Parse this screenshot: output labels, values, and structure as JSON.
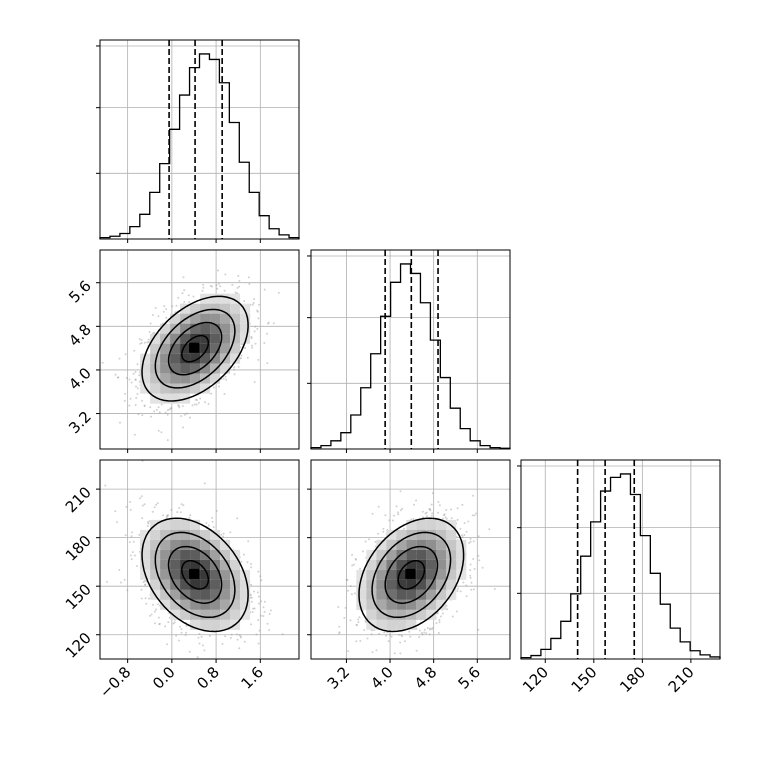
{
  "chart_data": {
    "type": "corner",
    "params": [
      {
        "range": [
          -1.3,
          2.3
        ],
        "ticks": [
          -0.8,
          0.0,
          0.8,
          1.6
        ],
        "tick_labels": [
          "−0.8",
          "0.0",
          "0.8",
          "1.6"
        ],
        "quantiles": [
          -0.05,
          0.42,
          0.91
        ]
      },
      {
        "range": [
          2.55,
          6.2
        ],
        "ticks": [
          3.2,
          4.0,
          4.8,
          5.6
        ],
        "tick_labels": [
          "3.2",
          "4.0",
          "4.8",
          "5.6"
        ],
        "quantiles": [
          3.91,
          4.39,
          4.88
        ]
      },
      {
        "range": [
          105,
          228
        ],
        "ticks": [
          120,
          150,
          180,
          210
        ],
        "tick_labels": [
          "120",
          "150",
          "180",
          "210"
        ],
        "quantiles": [
          140,
          157,
          175
        ]
      }
    ],
    "histograms": [
      {
        "param": 0,
        "bin_edges": [
          -1.3,
          2.3
        ],
        "counts": [
          2,
          4,
          8,
          18,
          36,
          68,
          110,
          160,
          210,
          250,
          270,
          262,
          228,
          170,
          112,
          68,
          34,
          15,
          6,
          2
        ]
      },
      {
        "param": 1,
        "bin_edges": [
          2.55,
          6.2
        ],
        "counts": [
          2,
          5,
          12,
          24,
          50,
          90,
          140,
          195,
          245,
          272,
          258,
          215,
          160,
          105,
          60,
          30,
          12,
          5,
          2,
          1
        ]
      },
      {
        "param": 2,
        "bin_edges": [
          105,
          228
        ],
        "counts": [
          2,
          5,
          14,
          30,
          55,
          95,
          150,
          200,
          245,
          265,
          270,
          240,
          180,
          125,
          80,
          45,
          25,
          12,
          6,
          3
        ]
      }
    ],
    "pairs": [
      {
        "x_param": 0,
        "y_param": 1,
        "mean": [
          0.42,
          4.39
        ],
        "sd": [
          0.48,
          0.48
        ],
        "corr": 0.45
      },
      {
        "x_param": 0,
        "y_param": 2,
        "mean": [
          0.42,
          157
        ],
        "sd": [
          0.48,
          17.5
        ],
        "corr": -0.35
      },
      {
        "x_param": 1,
        "y_param": 2,
        "mean": [
          4.39,
          157
        ],
        "sd": [
          0.48,
          17.5
        ],
        "corr": 0.35
      }
    ],
    "grid": true,
    "xlabel": "",
    "ylabel": "",
    "title": ""
  }
}
